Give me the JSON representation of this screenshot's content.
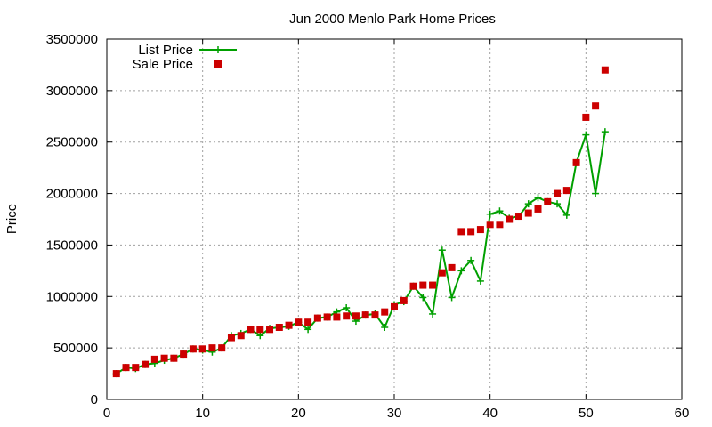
{
  "chart_data": {
    "type": "line",
    "title": "Jun 2000 Menlo Park Home Prices",
    "xlabel": "",
    "ylabel": "Price",
    "xlim": [
      0,
      60
    ],
    "ylim": [
      0,
      3500000
    ],
    "xticks": [
      "0",
      "10",
      "20",
      "30",
      "40",
      "50",
      "60"
    ],
    "yticks": [
      "0",
      "500000",
      "1000000",
      "1500000",
      "2000000",
      "2500000",
      "3000000",
      "3500000"
    ],
    "grid": true,
    "legend_position": "top-left",
    "series": [
      {
        "name": "List Price",
        "style": "line+cross",
        "color": "#00a000",
        "x": [
          1,
          2,
          3,
          4,
          5,
          6,
          7,
          8,
          9,
          10,
          11,
          12,
          13,
          14,
          15,
          16,
          17,
          18,
          19,
          20,
          21,
          22,
          23,
          24,
          25,
          26,
          27,
          28,
          29,
          30,
          31,
          32,
          33,
          34,
          35,
          36,
          37,
          38,
          39,
          40,
          41,
          42,
          43,
          44,
          45,
          46,
          47,
          48,
          49,
          50,
          51,
          52
        ],
        "y": [
          250000,
          310000,
          300000,
          340000,
          350000,
          380000,
          400000,
          440000,
          490000,
          480000,
          460000,
          500000,
          620000,
          640000,
          680000,
          620000,
          690000,
          700000,
          710000,
          750000,
          680000,
          790000,
          800000,
          850000,
          890000,
          760000,
          820000,
          830000,
          700000,
          920000,
          950000,
          1100000,
          990000,
          830000,
          1450000,
          990000,
          1250000,
          1350000,
          1150000,
          1800000,
          1830000,
          1760000,
          1780000,
          1900000,
          1960000,
          1920000,
          1900000,
          1790000,
          2300000,
          2570000,
          2000000,
          2600000
        ]
      },
      {
        "name": "Sale Price",
        "style": "square",
        "color": "#cc0000",
        "x": [
          1,
          2,
          3,
          4,
          5,
          6,
          7,
          8,
          9,
          10,
          11,
          12,
          13,
          14,
          15,
          16,
          17,
          18,
          19,
          20,
          21,
          22,
          23,
          24,
          25,
          26,
          27,
          28,
          29,
          30,
          31,
          32,
          33,
          34,
          35,
          36,
          37,
          38,
          39,
          40,
          41,
          42,
          43,
          44,
          45,
          46,
          47,
          48,
          49,
          50,
          51,
          52
        ],
        "y": [
          250000,
          310000,
          310000,
          340000,
          390000,
          400000,
          400000,
          440000,
          490000,
          490000,
          500000,
          500000,
          600000,
          620000,
          680000,
          680000,
          680000,
          700000,
          720000,
          750000,
          750000,
          790000,
          800000,
          800000,
          810000,
          810000,
          820000,
          820000,
          850000,
          900000,
          960000,
          1100000,
          1110000,
          1110000,
          1230000,
          1280000,
          1630000,
          1630000,
          1650000,
          1700000,
          1700000,
          1750000,
          1780000,
          1810000,
          1850000,
          1920000,
          2000000,
          2030000,
          2300000,
          2740000,
          2850000,
          3200000
        ]
      }
    ]
  }
}
